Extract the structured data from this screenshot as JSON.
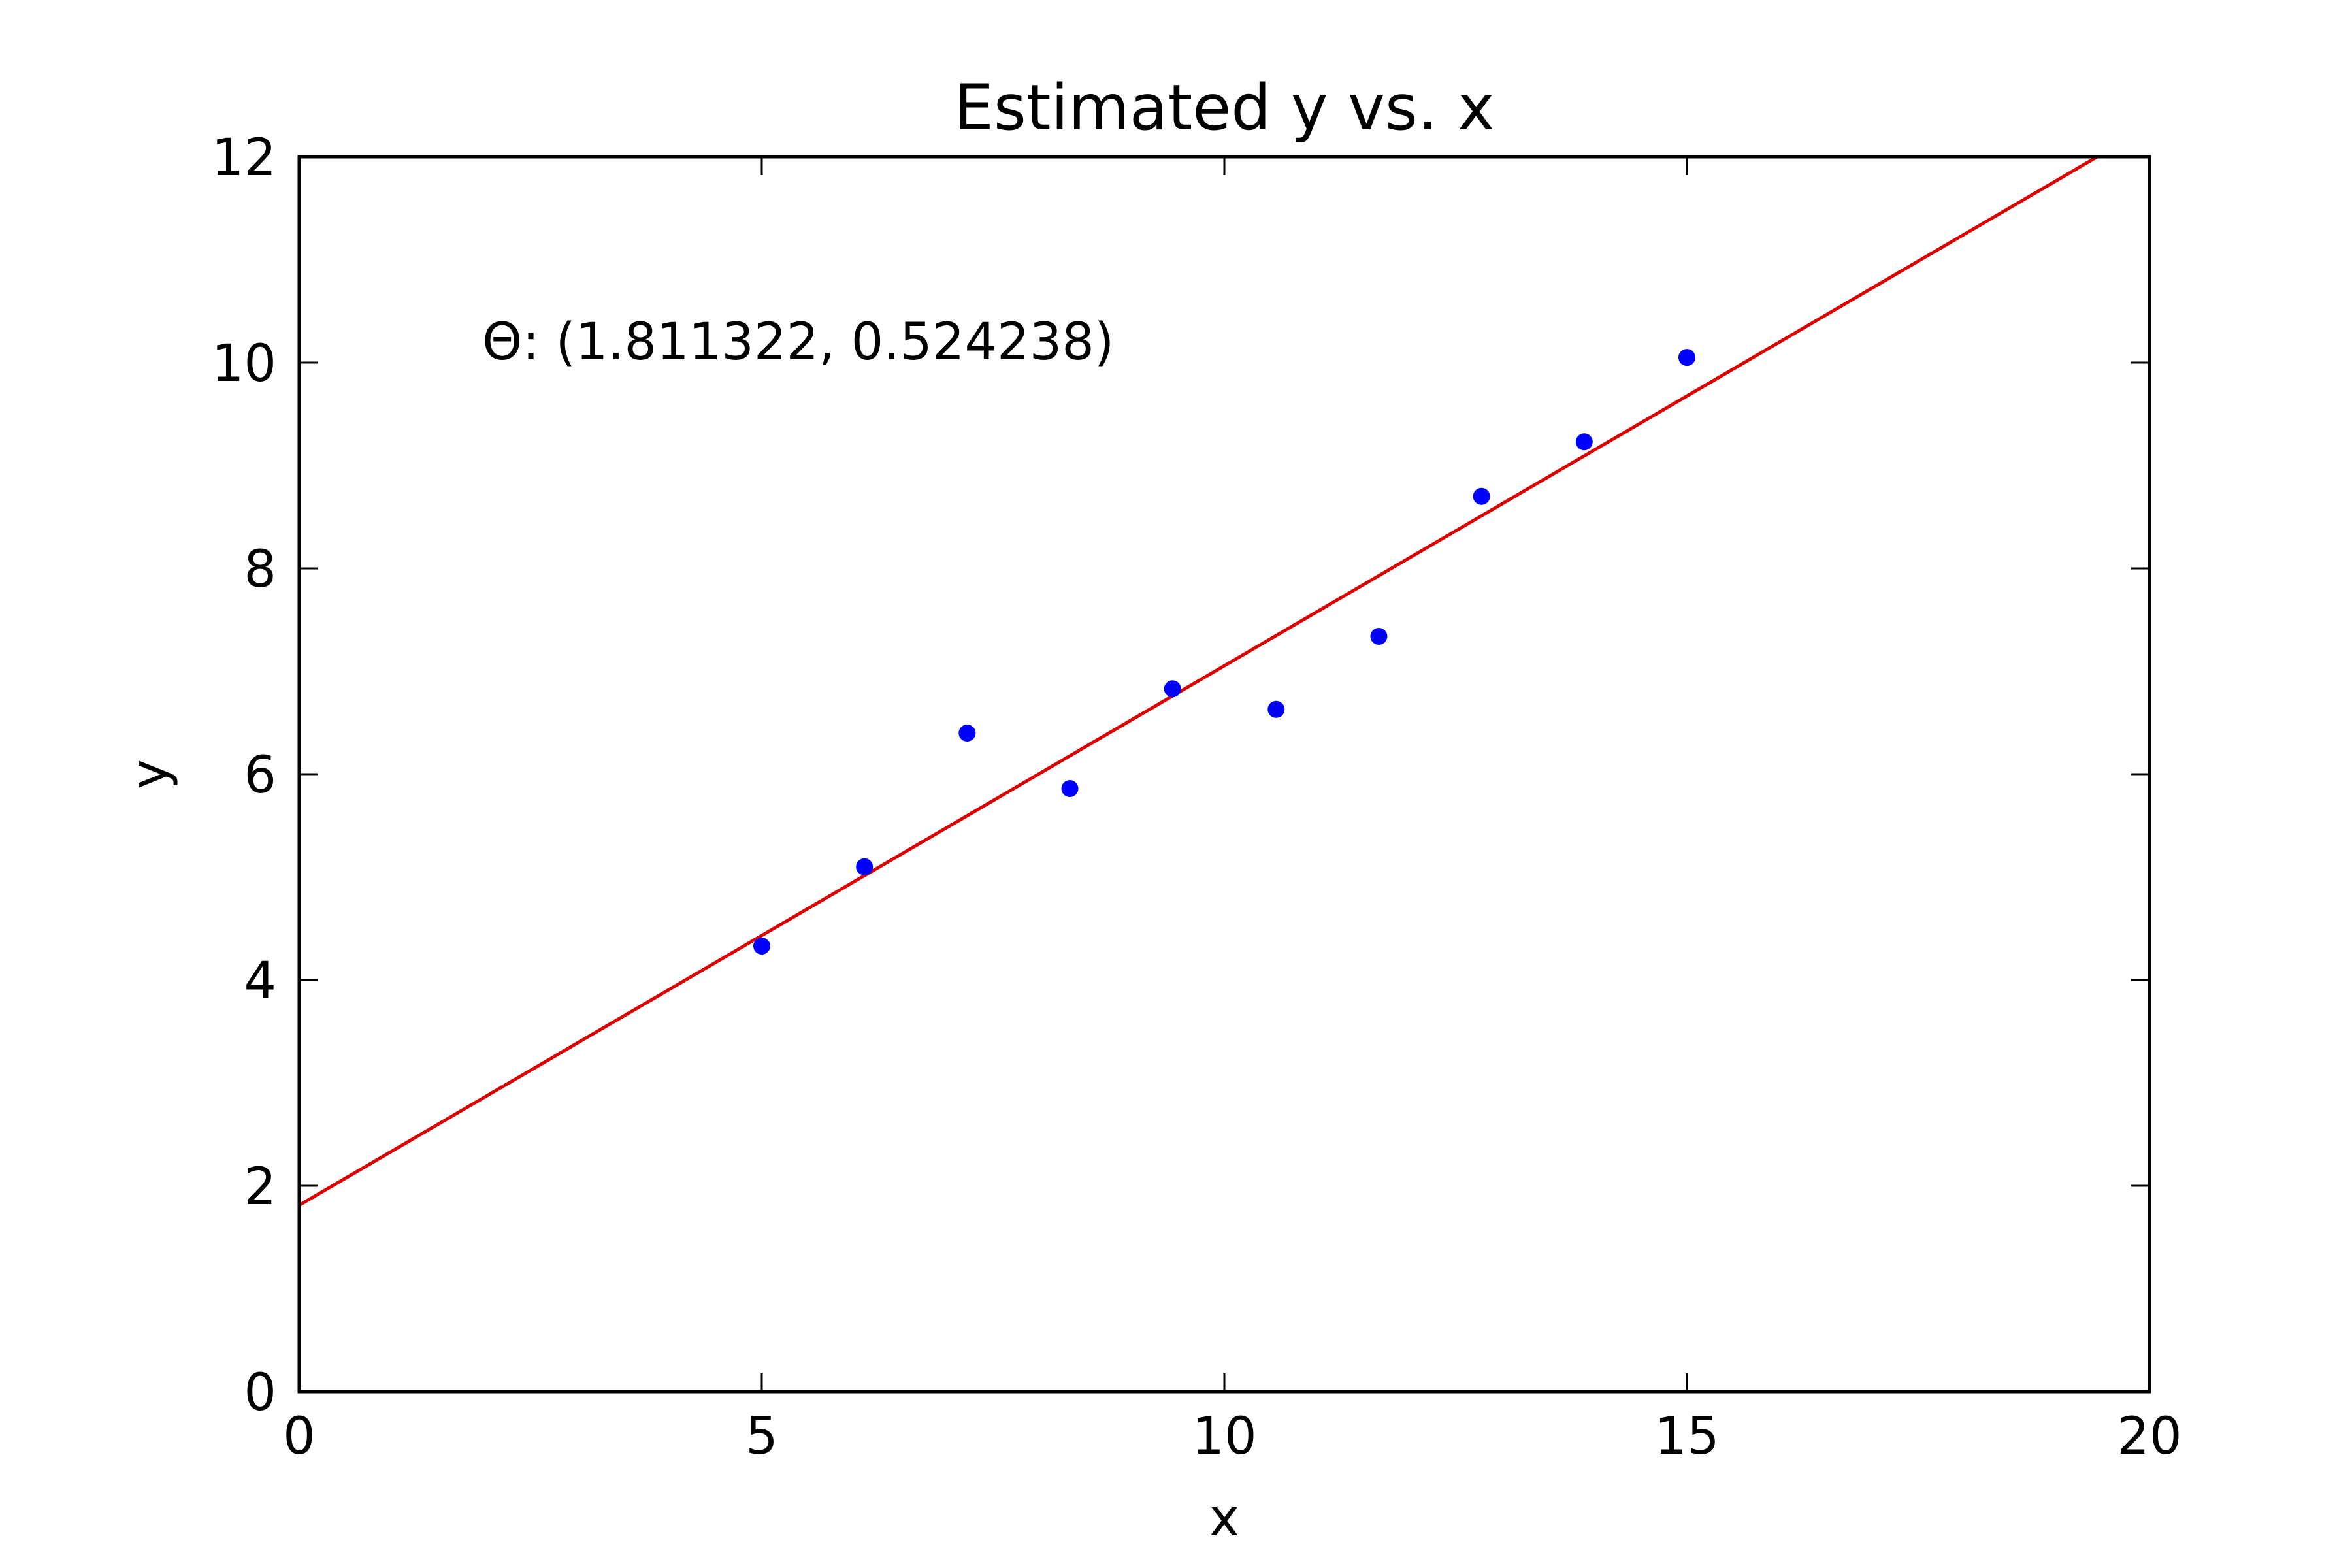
{
  "chart_data": {
    "type": "scatter",
    "title": "Estimated y vs. x",
    "xlabel": "x",
    "ylabel": "y",
    "xlim": [
      0,
      20
    ],
    "ylim": [
      0,
      12
    ],
    "x_ticks": [
      0,
      5,
      10,
      15,
      20
    ],
    "y_ticks": [
      0,
      2,
      4,
      6,
      8,
      10,
      12
    ],
    "x_tick_labels": [
      "0",
      "5",
      "10",
      "15",
      "20"
    ],
    "y_tick_labels": [
      "0",
      "2",
      "4",
      "6",
      "8",
      "10",
      "12"
    ],
    "grid": false,
    "annotation": "Θ: (1.811322, 0.524238)",
    "series": [
      {
        "kind": "points",
        "color": "#0000ff",
        "x": [
          5.0,
          6.11,
          7.22,
          8.33,
          9.44,
          10.56,
          11.67,
          12.78,
          13.89,
          15.0
        ],
        "y": [
          4.33,
          5.1,
          6.4,
          5.86,
          6.83,
          6.63,
          7.34,
          8.7,
          9.23,
          10.05
        ]
      },
      {
        "kind": "line",
        "color": "#dd0000",
        "intercept": 1.811322,
        "slope": 0.524238
      }
    ]
  }
}
